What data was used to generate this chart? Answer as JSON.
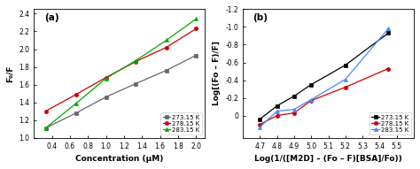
{
  "panel_a": {
    "label": "(a)",
    "xlabel": "Concentration (μM)",
    "ylabel": "F₀/F",
    "xlim": [
      0.2,
      2.1
    ],
    "ylim": [
      1.0,
      2.45
    ],
    "xticks": [
      0.4,
      0.6,
      0.8,
      1.0,
      1.2,
      1.4,
      1.6,
      1.8,
      2.0
    ],
    "yticks": [
      1.0,
      1.2,
      1.4,
      1.6,
      1.8,
      2.0,
      2.2,
      2.4
    ],
    "series": [
      {
        "label": "273.15 K",
        "color": "#666666",
        "marker": "s",
        "x": [
          0.33,
          0.67,
          1.0,
          1.33,
          1.67,
          2.0
        ],
        "y": [
          1.11,
          1.28,
          1.46,
          1.61,
          1.76,
          1.93
        ]
      },
      {
        "label": "278.15 K",
        "color": "#cc0000",
        "marker": "o",
        "x": [
          0.33,
          0.67,
          1.0,
          1.33,
          1.67,
          2.0
        ],
        "y": [
          1.3,
          1.49,
          1.68,
          1.86,
          2.02,
          2.23
        ]
      },
      {
        "label": "283.15 K",
        "color": "#00aa00",
        "marker": "^",
        "x": [
          0.33,
          0.67,
          1.0,
          1.33,
          1.67,
          2.0
        ],
        "y": [
          1.11,
          1.39,
          1.67,
          1.87,
          2.1,
          2.34
        ]
      }
    ]
  },
  "panel_b": {
    "label": "(b)",
    "xlabel": "Log(1/([M2D] – (Fo – F)[BSA]/Fo))",
    "ylabel": "Log[(Fo – F)/F]",
    "xlim": [
      4.6,
      5.6
    ],
    "ylim": [
      -1.2,
      0.25
    ],
    "xticks": [
      4.7,
      4.8,
      4.9,
      5.0,
      5.1,
      5.2,
      5.3,
      5.4,
      5.5
    ],
    "yticks": [
      -1.2,
      -1.0,
      -0.8,
      -0.6,
      -0.4,
      -0.2,
      0.0
    ],
    "yticklabels": [
      "-1.2",
      "-1.0",
      "-0.8",
      "-0.6",
      "-0.4",
      "-0.2",
      "0"
    ],
    "series": [
      {
        "label": "273.15 K",
        "color": "#000000",
        "marker": "s",
        "x": [
          4.7,
          4.8,
          4.9,
          5.0,
          5.2,
          5.45
        ],
        "y": [
          0.04,
          -0.11,
          -0.22,
          -0.35,
          -0.57,
          -0.93
        ]
      },
      {
        "label": "278.15 K",
        "color": "#cc0000",
        "marker": "o",
        "x": [
          4.7,
          4.8,
          4.9,
          5.0,
          5.2,
          5.45
        ],
        "y": [
          0.1,
          0.0,
          -0.03,
          -0.17,
          -0.32,
          -0.53
        ]
      },
      {
        "label": "283.15 K",
        "color": "#4488ff",
        "marker": "^",
        "x": [
          4.7,
          4.8,
          4.9,
          5.0,
          5.2,
          5.45
        ],
        "y": [
          0.13,
          -0.05,
          -0.07,
          -0.18,
          -0.41,
          -0.98
        ]
      }
    ]
  },
  "figure_bg": "#ffffff",
  "tick_fontsize": 5.5,
  "label_fontsize": 6.5,
  "legend_fontsize": 5.0,
  "annotation_fontsize": 7.5,
  "linewidth": 0.9,
  "markersize": 3.0
}
